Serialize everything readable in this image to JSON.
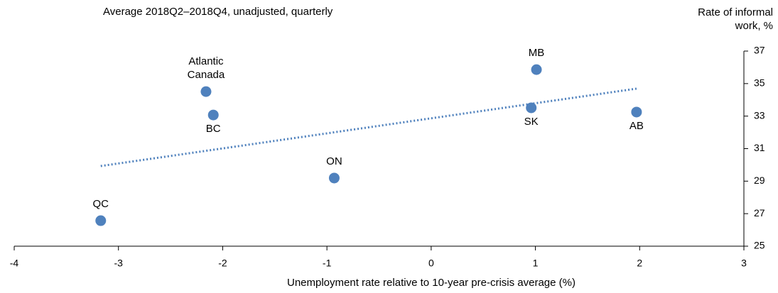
{
  "chart_data": {
    "type": "scatter",
    "subtitle": "Average 2018Q2–2018Q4, unadjusted, quarterly",
    "xlabel": "Unemployment rate relative to 10-year pre-crisis average (%)",
    "ylabel": "Rate of informal work, %",
    "categories": [
      "QC",
      "Atlantic Canada",
      "BC",
      "ON",
      "MB",
      "SK",
      "AB"
    ],
    "x": [
      -3.17,
      -2.16,
      -2.09,
      -0.93,
      1.01,
      0.96,
      1.97
    ],
    "values": [
      26.57,
      34.51,
      33.07,
      29.19,
      35.86,
      33.51,
      33.25
    ],
    "color": "#4f81bd",
    "trendline": {
      "x": [
        -3.17,
        1.97
      ],
      "values": [
        29.93,
        34.69
      ],
      "color": "#4f81bd"
    },
    "xlim": [
      -4,
      3
    ],
    "xticks": [
      -4,
      -3,
      -2,
      -1,
      0,
      1,
      2,
      3
    ],
    "ylim": [
      25,
      37
    ],
    "yticks": [
      25,
      27,
      29,
      31,
      33,
      35,
      37
    ]
  }
}
